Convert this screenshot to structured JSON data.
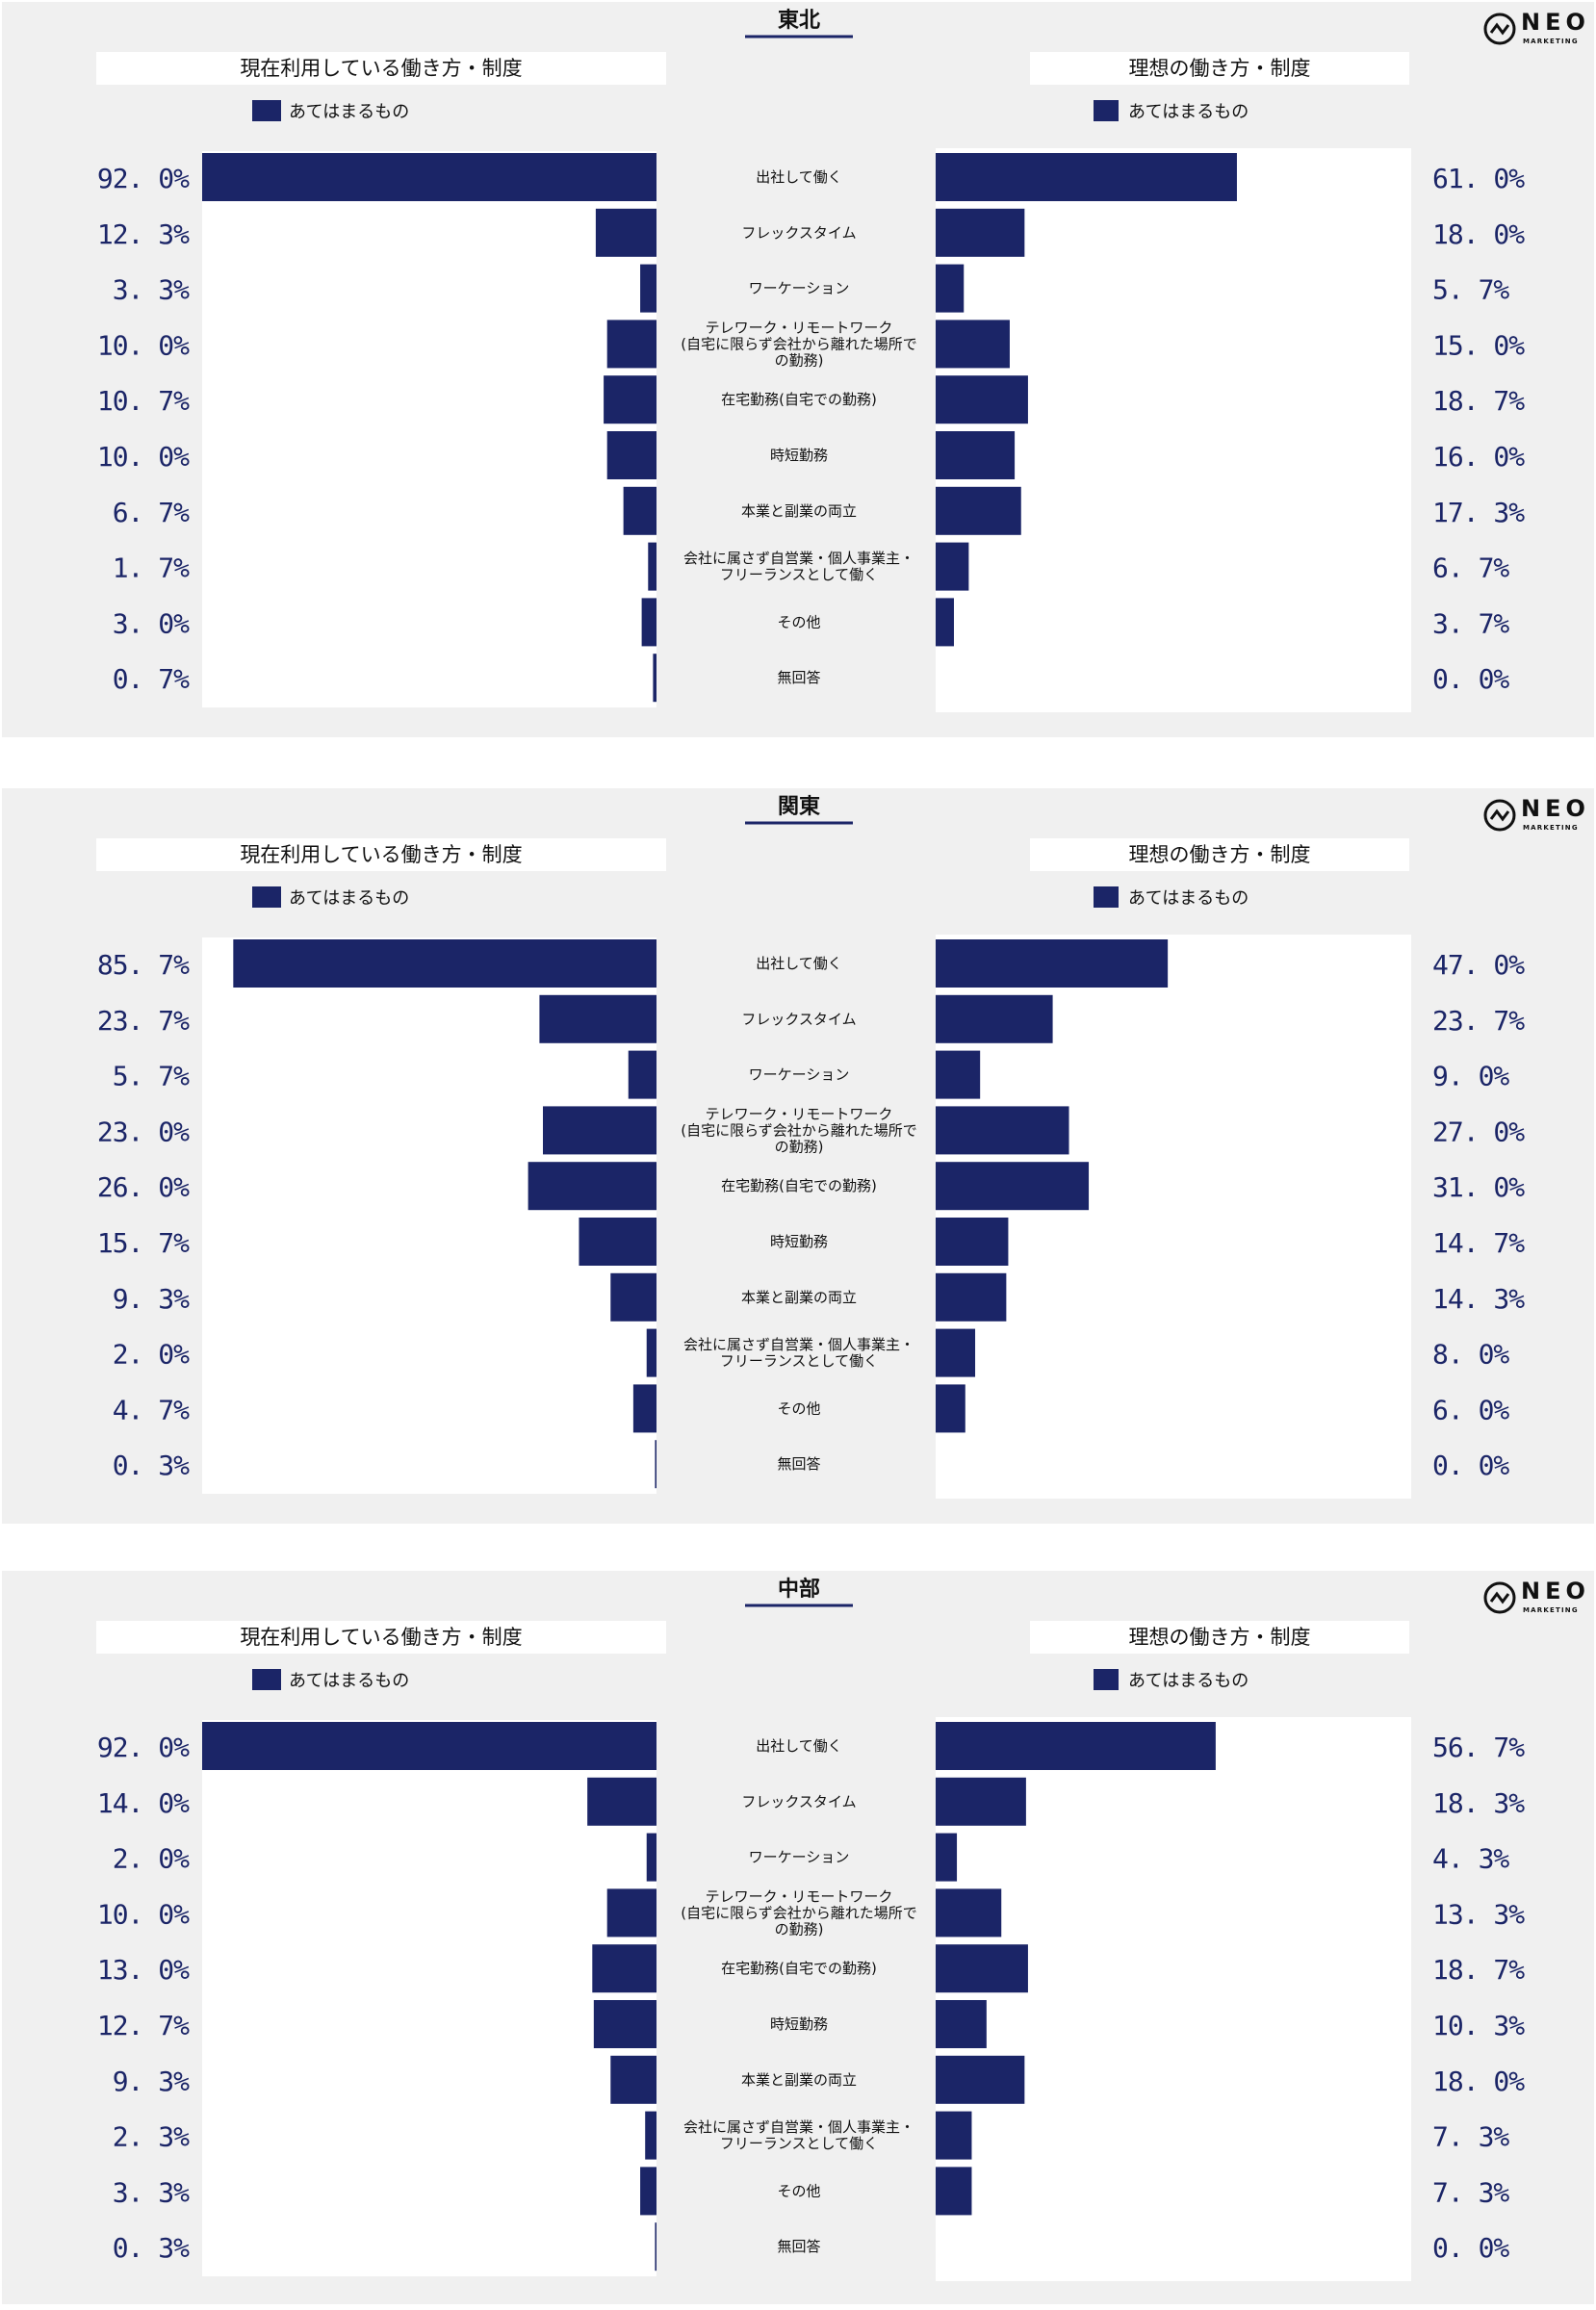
{
  "brand": {
    "logo_text": "NEO",
    "logo_sub": "MARKETING"
  },
  "colors": {
    "bar": "#1b2567",
    "panel_bg": "#f0f0f0",
    "plot_bg": "#ffffff",
    "value_text": "#1b2567",
    "title_line": "#1b2567"
  },
  "chart_data": [
    {
      "type": "bar",
      "title": "東北",
      "left_title": "現在利用している働き方・制度",
      "right_title": "理想の働き方・制度",
      "legend": "あてはまるもの",
      "categories": [
        "出社して働く",
        "フレックスタイム",
        "ワーケーション",
        "テレワーク・リモートワーク\n(自宅に限らず会社から離れた場所で\nの勤務)",
        "在宅勤務(自宅での勤務)",
        "時短勤務",
        "本業と副業の両立",
        "会社に属さず自営業・個人事業主・\nフリーランスとして働く",
        "その他",
        "無回答"
      ],
      "series": [
        {
          "name": "現在利用している働き方・制度",
          "values": [
            92.0,
            12.3,
            3.3,
            10.0,
            10.7,
            10.0,
            6.7,
            1.7,
            3.0,
            0.7
          ],
          "labels": [
            "92. 0%",
            "12. 3%",
            "3. 3%",
            "10. 0%",
            "10. 7%",
            "10. 0%",
            "6. 7%",
            "1. 7%",
            "3. 0%",
            "0. 7%"
          ]
        },
        {
          "name": "理想の働き方・制度",
          "values": [
            61.0,
            18.0,
            5.7,
            15.0,
            18.7,
            16.0,
            17.3,
            6.7,
            3.7,
            0.0
          ],
          "labels": [
            "61. 0%",
            "18. 0%",
            "5. 7%",
            "15. 0%",
            "18. 7%",
            "16. 0%",
            "17. 3%",
            "6. 7%",
            "3. 7%",
            "0. 0%"
          ]
        }
      ],
      "xlim": [
        0,
        100
      ]
    },
    {
      "type": "bar",
      "title": "関東",
      "left_title": "現在利用している働き方・制度",
      "right_title": "理想の働き方・制度",
      "legend": "あてはまるもの",
      "categories": [
        "出社して働く",
        "フレックスタイム",
        "ワーケーション",
        "テレワーク・リモートワーク\n(自宅に限らず会社から離れた場所で\nの勤務)",
        "在宅勤務(自宅での勤務)",
        "時短勤務",
        "本業と副業の両立",
        "会社に属さず自営業・個人事業主・\nフリーランスとして働く",
        "その他",
        "無回答"
      ],
      "series": [
        {
          "name": "現在利用している働き方・制度",
          "values": [
            85.7,
            23.7,
            5.7,
            23.0,
            26.0,
            15.7,
            9.3,
            2.0,
            4.7,
            0.3
          ],
          "labels": [
            "85. 7%",
            "23. 7%",
            "5. 7%",
            "23. 0%",
            "26. 0%",
            "15. 7%",
            "9. 3%",
            "2. 0%",
            "4. 7%",
            "0. 3%"
          ]
        },
        {
          "name": "理想の働き方・制度",
          "values": [
            47.0,
            23.7,
            9.0,
            27.0,
            31.0,
            14.7,
            14.3,
            8.0,
            6.0,
            0.0
          ],
          "labels": [
            "47. 0%",
            "23. 7%",
            "9. 0%",
            "27. 0%",
            "31. 0%",
            "14. 7%",
            "14. 3%",
            "8. 0%",
            "6. 0%",
            "0. 0%"
          ]
        }
      ],
      "xlim": [
        0,
        100
      ]
    },
    {
      "type": "bar",
      "title": "中部",
      "left_title": "現在利用している働き方・制度",
      "right_title": "理想の働き方・制度",
      "legend": "あてはまるもの",
      "categories": [
        "出社して働く",
        "フレックスタイム",
        "ワーケーション",
        "テレワーク・リモートワーク\n(自宅に限らず会社から離れた場所で\nの勤務)",
        "在宅勤務(自宅での勤務)",
        "時短勤務",
        "本業と副業の両立",
        "会社に属さず自営業・個人事業主・\nフリーランスとして働く",
        "その他",
        "無回答"
      ],
      "series": [
        {
          "name": "現在利用している働き方・制度",
          "values": [
            92.0,
            14.0,
            2.0,
            10.0,
            13.0,
            12.7,
            9.3,
            2.3,
            3.3,
            0.3
          ],
          "labels": [
            "92. 0%",
            "14. 0%",
            "2. 0%",
            "10. 0%",
            "13. 0%",
            "12. 7%",
            "9. 3%",
            "2. 3%",
            "3. 3%",
            "0. 3%"
          ]
        },
        {
          "name": "理想の働き方・制度",
          "values": [
            56.7,
            18.3,
            4.3,
            13.3,
            18.7,
            10.3,
            18.0,
            7.3,
            7.3,
            0.0
          ],
          "labels": [
            "56. 7%",
            "18. 3%",
            "4. 3%",
            "13. 3%",
            "18. 7%",
            "10. 3%",
            "18. 0%",
            "7. 3%",
            "7. 3%",
            "0. 0%"
          ]
        }
      ],
      "xlim": [
        0,
        100
      ]
    }
  ]
}
